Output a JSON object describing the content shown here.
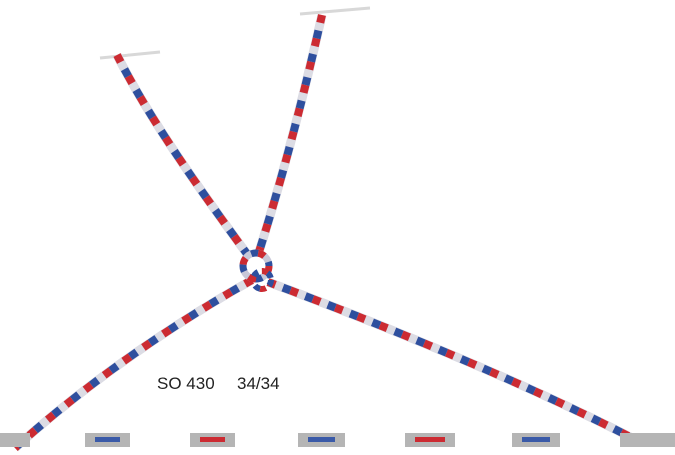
{
  "label": {
    "product": "SO 430",
    "size": "34/34"
  }
}
